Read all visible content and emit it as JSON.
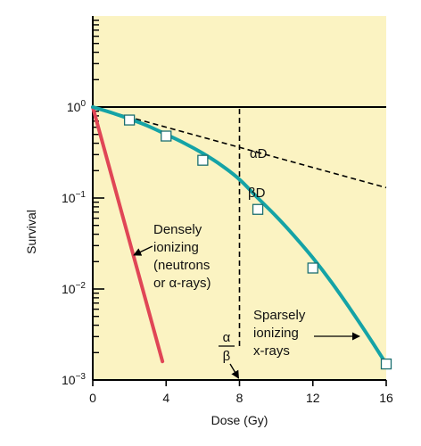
{
  "chart_data": {
    "type": "line",
    "xlabel": "Dose (Gy)",
    "ylabel": "Survival",
    "xlim": [
      0,
      16
    ],
    "ylim_log10": [
      -3,
      1
    ],
    "log_scale_y": true,
    "x_ticks": [
      {
        "value": 0,
        "label": "0"
      },
      {
        "value": 4,
        "label": "4"
      },
      {
        "value": 8,
        "label": "8"
      },
      {
        "value": 12,
        "label": "12"
      },
      {
        "value": 16,
        "label": "16"
      }
    ],
    "y_ticks": [
      {
        "exp": 0,
        "base": "10",
        "sup": "0"
      },
      {
        "exp": -1,
        "base": "10",
        "sup": "−1"
      },
      {
        "exp": -2,
        "base": "10",
        "sup": "−2"
      },
      {
        "exp": -3,
        "base": "10",
        "sup": "−3"
      }
    ],
    "colors": {
      "background": "#fbf3c2",
      "sparse_curve": "#15a3a6",
      "dense_line": "#e04656",
      "axes": "#000000",
      "marker_fill": "#ffffff",
      "marker_stroke": "#1a6e70"
    },
    "series": [
      {
        "key": "sparsely_ionizing",
        "style": "curve",
        "points": [
          [
            0,
            1.0
          ],
          [
            1,
            0.87
          ],
          [
            2,
            0.74
          ],
          [
            3,
            0.62
          ],
          [
            4,
            0.5
          ],
          [
            5,
            0.4
          ],
          [
            6,
            0.31
          ],
          [
            7,
            0.23
          ],
          [
            8,
            0.16
          ],
          [
            9,
            0.1
          ],
          [
            10,
            0.063
          ],
          [
            11,
            0.038
          ],
          [
            12,
            0.022
          ],
          [
            13,
            0.012
          ],
          [
            14,
            0.0062
          ],
          [
            15,
            0.0031
          ],
          [
            16,
            0.0015
          ]
        ],
        "markers": [
          [
            2,
            0.72
          ],
          [
            4,
            0.48
          ],
          [
            6,
            0.26
          ],
          [
            9,
            0.075
          ],
          [
            12,
            0.017
          ],
          [
            16,
            0.0015
          ]
        ]
      },
      {
        "key": "alpha_D",
        "style": "solid",
        "points": [
          [
            0,
            1.0
          ],
          [
            16,
            1.0
          ]
        ]
      },
      {
        "key": "beta_D",
        "style": "dashed",
        "points": [
          [
            0,
            1.0
          ],
          [
            16,
            0.13
          ]
        ]
      },
      {
        "key": "densely_ionizing",
        "style": "solid",
        "points": [
          [
            0,
            1.0
          ],
          [
            3.8,
            0.0016
          ]
        ]
      }
    ],
    "vertical_reference": {
      "x": 8,
      "style": "dashed"
    },
    "annotations": {
      "alpha_d": "αD",
      "beta_d": "βD",
      "dense": [
        "Densely",
        "ionizing",
        "(neutrons",
        "or α-rays)"
      ],
      "sparse": [
        "Sparsely",
        "ionizing",
        "x-rays"
      ],
      "ratio_numerator": "α",
      "ratio_denominator": "β"
    }
  }
}
